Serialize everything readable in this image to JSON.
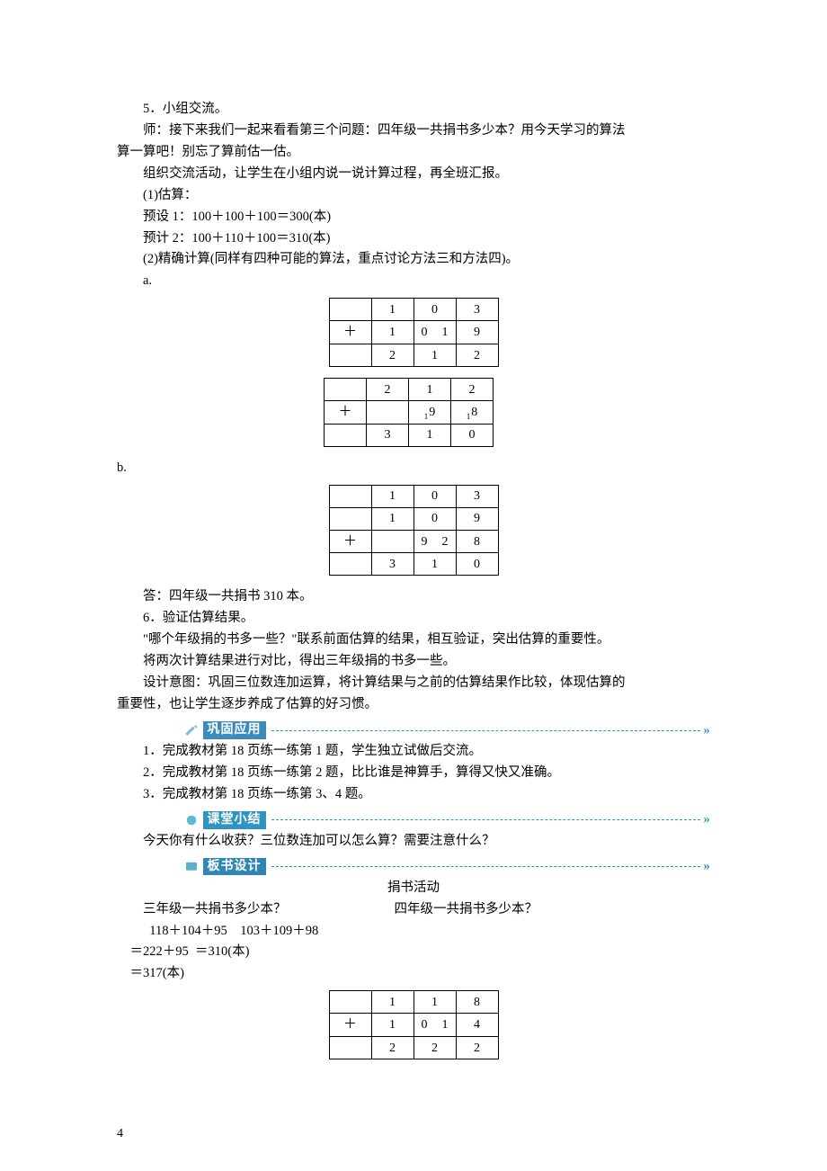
{
  "lines": {
    "l1": "5．小组交流。",
    "l2": "师：接下来我们一起来看看第三个问题：四年级一共捐书多少本？用今天学习的算法",
    "l3": "算一算吧！别忘了算前估一估。",
    "l4": "组织交流活动，让学生在小组内说一说计算过程，再全班汇报。",
    "l5": "(1)估算：",
    "l6": "预设 1：100＋100＋100＝300(本)",
    "l7": "预计 2：100＋110＋100＝310(本)",
    "l8": "(2)精确计算(同样有四种可能的算法，重点讨论方法三和方法四)。",
    "la": "a.",
    "lb": "b.",
    "ans1": "答：四年级一共捐书 310 本。",
    "l9": "6．验证估算结果。",
    "l10": "\"哪个年级捐的书多一些？\"联系前面估算的结果，相互验证，突出估算的重要性。",
    "l11": "将两次计算结果进行对比，得出三年级捐的书多一些。",
    "l12": "设计意图：巩固三位数连加运算，将计算结果与之前的估算结果作比较，体现估算的",
    "l13": "重要性，也让学生逐步养成了估算的好习惯。",
    "p1": "1．完成教材第 18 页练一练第 1 题，学生独立试做后交流。",
    "p2": "2．完成教材第 18 页练一练第 2 题，比比谁是神算手，算得又快又准确。",
    "p3": "3．完成教材第 18 页练一练第 3、4 题。",
    "summary_q": "今天你有什么收获？三位数连加可以怎么算？需要注意什么？",
    "board_title": "捐书活动",
    "b_q1": "三年级一共捐书多少本？",
    "b_q2": "四年级一共捐书多少本？",
    "b_e1": "  118＋104＋95    103＋109＋98",
    "b_e2": "＝222＋95  ＝310(本)",
    "b_e3": "＝317(本)"
  },
  "bars": {
    "gonggu": {
      "label": "巩固应用",
      "color": "#3c8bba",
      "icon_color": "#7cc2d6"
    },
    "ketang": {
      "label": "课堂小结",
      "color": "#2f95c0",
      "icon_color": "#5eb8d6"
    },
    "banshu": {
      "label": "板书设计",
      "color": "#2f86b6",
      "icon_color": "#5bb0cc"
    }
  },
  "tables": {
    "t1": {
      "rows": [
        [
          "",
          "1",
          "0",
          "3"
        ],
        [
          "＋",
          "1",
          "0  1",
          "9"
        ],
        [
          "",
          "2",
          "1",
          "2"
        ]
      ]
    },
    "t2": {
      "rows": [
        [
          "",
          "2",
          "1",
          "2"
        ],
        [
          "＋",
          "",
          "s1:9",
          "s1:8"
        ],
        [
          "",
          "3",
          "1",
          "0"
        ]
      ]
    },
    "t3": {
      "rows": [
        [
          "",
          "1",
          "0",
          "3"
        ],
        [
          "",
          "1",
          "0",
          "9"
        ],
        [
          "＋",
          "",
          "9  2",
          "8"
        ],
        [
          "",
          "3",
          "1",
          "0"
        ]
      ]
    },
    "t4": {
      "rows": [
        [
          "",
          "1",
          "1",
          "8"
        ],
        [
          "＋",
          "1",
          "0  1",
          "4"
        ],
        [
          "",
          "2",
          "2",
          "2"
        ]
      ]
    }
  },
  "page_num": "4"
}
